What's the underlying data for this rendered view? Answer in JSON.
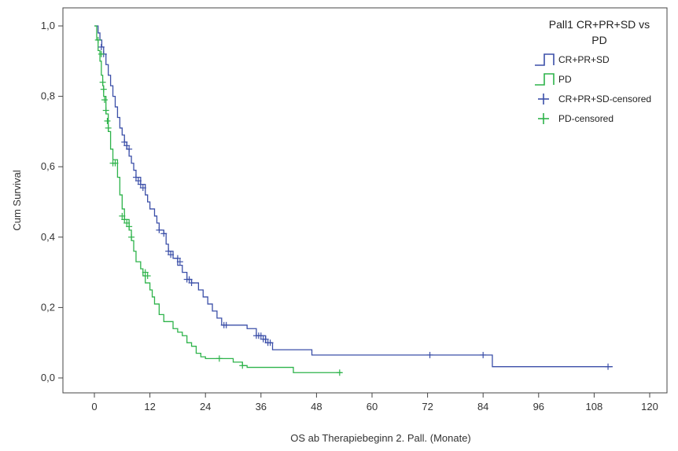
{
  "chart_data": {
    "type": "line",
    "subtype": "kaplan-meier",
    "title": "",
    "xlabel": "OS ab Therapiebeginn 2. Pall. (Monate)",
    "ylabel": "Cum Survival",
    "xlim": [
      0,
      120
    ],
    "ylim": [
      0,
      1.0
    ],
    "xticks": [
      0,
      12,
      24,
      36,
      48,
      60,
      72,
      84,
      96,
      108,
      120
    ],
    "yticks": [
      0.0,
      0.2,
      0.4,
      0.6,
      0.8,
      1.0
    ],
    "ytick_labels": [
      "0,0",
      "0,2",
      "0,4",
      "0,6",
      "0,8",
      "1,0"
    ],
    "xtick_labels": [
      "0",
      "12",
      "24",
      "36",
      "48",
      "60",
      "72",
      "84",
      "96",
      "108",
      "120"
    ],
    "grid": false,
    "legend": {
      "title_lines": [
        "Pall1 CR+PR+SD vs",
        "PD"
      ],
      "placement": "top-right",
      "entries": [
        {
          "label": "CR+PR+SD",
          "kind": "line",
          "color": "#3b4fa8"
        },
        {
          "label": "PD",
          "kind": "line",
          "color": "#2db34a"
        },
        {
          "label": "CR+PR+SD-censored",
          "kind": "censor",
          "color": "#3b4fa8"
        },
        {
          "label": "PD-censored",
          "kind": "censor",
          "color": "#2db34a"
        }
      ]
    },
    "series": [
      {
        "name": "CR+PR+SD",
        "color": "#3b4fa8",
        "steps": [
          [
            0,
            1.0
          ],
          [
            0.8,
            0.98
          ],
          [
            1.2,
            0.96
          ],
          [
            1.6,
            0.94
          ],
          [
            2.0,
            0.92
          ],
          [
            2.5,
            0.89
          ],
          [
            3.0,
            0.86
          ],
          [
            3.5,
            0.83
          ],
          [
            4.0,
            0.8
          ],
          [
            4.5,
            0.77
          ],
          [
            5.0,
            0.74
          ],
          [
            5.5,
            0.71
          ],
          [
            6.0,
            0.69
          ],
          [
            6.5,
            0.67
          ],
          [
            7.0,
            0.65
          ],
          [
            7.5,
            0.63
          ],
          [
            8.0,
            0.61
          ],
          [
            8.5,
            0.59
          ],
          [
            9.0,
            0.57
          ],
          [
            10.0,
            0.55
          ],
          [
            11.0,
            0.52
          ],
          [
            11.5,
            0.5
          ],
          [
            12.0,
            0.48
          ],
          [
            13.0,
            0.46
          ],
          [
            13.5,
            0.44
          ],
          [
            14.0,
            0.42
          ],
          [
            15.0,
            0.41
          ],
          [
            15.5,
            0.38
          ],
          [
            16.0,
            0.36
          ],
          [
            17.0,
            0.34
          ],
          [
            18.0,
            0.32
          ],
          [
            19.0,
            0.3
          ],
          [
            20.0,
            0.28
          ],
          [
            21.0,
            0.27
          ],
          [
            22.5,
            0.25
          ],
          [
            23.5,
            0.23
          ],
          [
            24.5,
            0.21
          ],
          [
            25.5,
            0.19
          ],
          [
            26.5,
            0.17
          ],
          [
            27.5,
            0.15
          ],
          [
            33.0,
            0.14
          ],
          [
            35.0,
            0.12
          ],
          [
            37.0,
            0.1
          ],
          [
            38.5,
            0.08
          ],
          [
            47.0,
            0.065
          ],
          [
            86.0,
            0.032
          ],
          [
            112.0,
            0.032
          ]
        ],
        "censored": [
          [
            1.5,
            0.94
          ],
          [
            2.0,
            0.92
          ],
          [
            6.5,
            0.67
          ],
          [
            7.0,
            0.66
          ],
          [
            7.5,
            0.65
          ],
          [
            9.0,
            0.57
          ],
          [
            9.5,
            0.56
          ],
          [
            10.0,
            0.55
          ],
          [
            10.5,
            0.54
          ],
          [
            14.0,
            0.42
          ],
          [
            15.0,
            0.41
          ],
          [
            16.0,
            0.36
          ],
          [
            16.5,
            0.35
          ],
          [
            18.0,
            0.34
          ],
          [
            18.5,
            0.33
          ],
          [
            20.0,
            0.28
          ],
          [
            20.5,
            0.28
          ],
          [
            21.0,
            0.27
          ],
          [
            28.0,
            0.15
          ],
          [
            28.5,
            0.15
          ],
          [
            35.0,
            0.12
          ],
          [
            35.5,
            0.12
          ],
          [
            36.0,
            0.12
          ],
          [
            36.5,
            0.11
          ],
          [
            37.0,
            0.11
          ],
          [
            37.5,
            0.1
          ],
          [
            38.0,
            0.1
          ],
          [
            72.5,
            0.065
          ],
          [
            84.0,
            0.065
          ],
          [
            111.0,
            0.032
          ]
        ]
      },
      {
        "name": "PD",
        "color": "#2db34a",
        "steps": [
          [
            0,
            1.0
          ],
          [
            0.5,
            0.96
          ],
          [
            0.8,
            0.93
          ],
          [
            1.2,
            0.9
          ],
          [
            1.5,
            0.86
          ],
          [
            1.8,
            0.83
          ],
          [
            2.0,
            0.8
          ],
          [
            2.5,
            0.75
          ],
          [
            3.0,
            0.7
          ],
          [
            3.5,
            0.65
          ],
          [
            4.0,
            0.62
          ],
          [
            5.0,
            0.57
          ],
          [
            5.5,
            0.52
          ],
          [
            6.0,
            0.48
          ],
          [
            6.5,
            0.45
          ],
          [
            7.5,
            0.42
          ],
          [
            8.0,
            0.39
          ],
          [
            8.5,
            0.36
          ],
          [
            9.0,
            0.33
          ],
          [
            10.0,
            0.31
          ],
          [
            10.5,
            0.29
          ],
          [
            11.0,
            0.27
          ],
          [
            12.0,
            0.25
          ],
          [
            12.5,
            0.23
          ],
          [
            13.0,
            0.21
          ],
          [
            14.0,
            0.18
          ],
          [
            15.0,
            0.16
          ],
          [
            17.0,
            0.14
          ],
          [
            18.0,
            0.13
          ],
          [
            19.0,
            0.12
          ],
          [
            20.0,
            0.1
          ],
          [
            21.0,
            0.09
          ],
          [
            22.0,
            0.07
          ],
          [
            23.0,
            0.06
          ],
          [
            24.0,
            0.055
          ],
          [
            30.0,
            0.045
          ],
          [
            32.0,
            0.035
          ],
          [
            33.0,
            0.03
          ],
          [
            43.0,
            0.015
          ],
          [
            53.5,
            0.015
          ]
        ],
        "censored": [
          [
            0.8,
            0.96
          ],
          [
            1.5,
            0.92
          ],
          [
            1.8,
            0.84
          ],
          [
            2.0,
            0.82
          ],
          [
            2.2,
            0.79
          ],
          [
            2.5,
            0.76
          ],
          [
            2.8,
            0.73
          ],
          [
            3.0,
            0.71
          ],
          [
            4.0,
            0.61
          ],
          [
            4.5,
            0.61
          ],
          [
            6.0,
            0.46
          ],
          [
            6.5,
            0.45
          ],
          [
            7.0,
            0.44
          ],
          [
            7.5,
            0.43
          ],
          [
            8.0,
            0.4
          ],
          [
            11.0,
            0.3
          ],
          [
            11.5,
            0.29
          ],
          [
            27.0,
            0.055
          ],
          [
            32.0,
            0.035
          ],
          [
            53.0,
            0.015
          ]
        ]
      }
    ]
  }
}
